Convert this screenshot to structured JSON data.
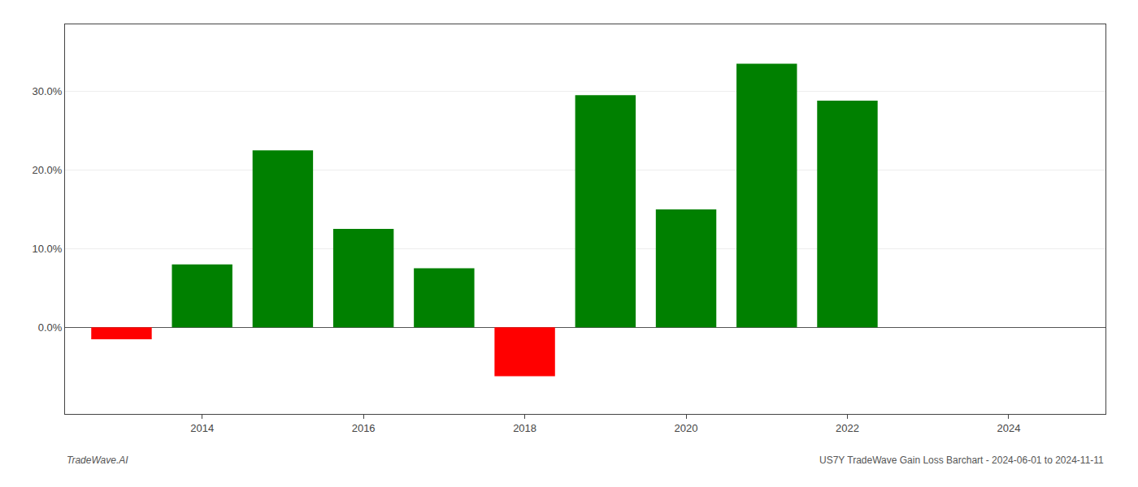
{
  "chart_data": {
    "type": "bar",
    "x": [
      2013,
      2014,
      2015,
      2016,
      2017,
      2018,
      2019,
      2020,
      2021,
      2022
    ],
    "values": [
      -0.015,
      0.08,
      0.225,
      0.125,
      0.075,
      -0.062,
      0.295,
      0.15,
      0.335,
      0.288
    ],
    "colors": [
      "#ff0000",
      "#008000",
      "#008000",
      "#008000",
      "#008000",
      "#ff0000",
      "#008000",
      "#008000",
      "#008000",
      "#008000"
    ],
    "xlim": [
      2012.3,
      2025.2
    ],
    "xticks": [
      2014,
      2016,
      2018,
      2020,
      2022,
      2024
    ],
    "ylim": [
      -0.11,
      0.385
    ],
    "yticks": [
      {
        "value": 0.0,
        "label": "0.0%"
      },
      {
        "value": 0.1,
        "label": "10.0%"
      },
      {
        "value": 0.2,
        "label": "20.0%"
      },
      {
        "value": 0.3,
        "label": "30.0%"
      }
    ],
    "grid": "y",
    "annotations": [
      "TradeWave.AI",
      "US7Y TradeWave Gain Loss Barchart - 2024-06-01 to 2024-11-11"
    ]
  }
}
